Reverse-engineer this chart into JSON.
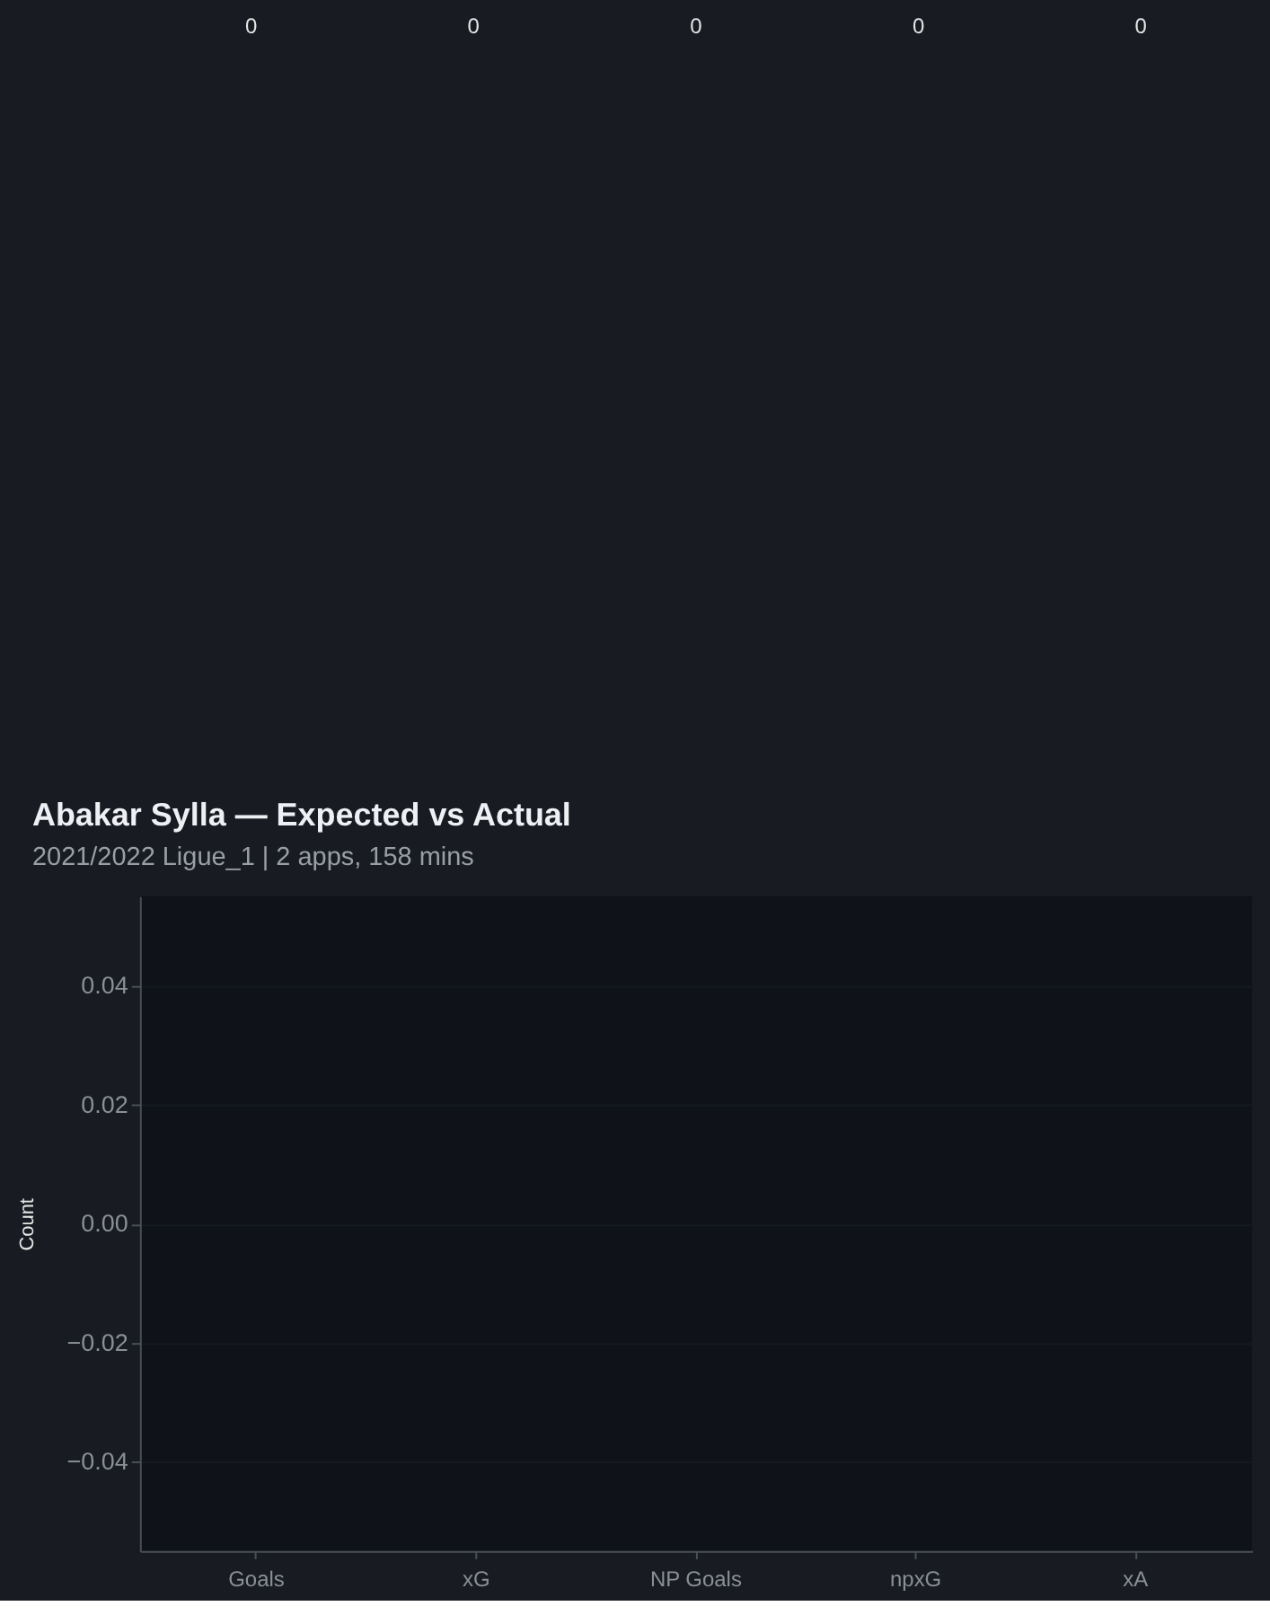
{
  "chart_data": {
    "type": "bar",
    "title": "Abakar Sylla — Expected vs Actual",
    "subtitle": "2021/2022 Ligue_1 | 2 apps, 158 mins",
    "ylabel": "Count",
    "categories": [
      "Goals",
      "xG",
      "NP Goals",
      "npxG",
      "xA"
    ],
    "values": [
      0,
      0,
      0,
      0,
      0
    ],
    "data_labels": true,
    "ylim": [
      -0.055,
      0.055
    ],
    "yticks": [
      {
        "value": -0.04,
        "label": "−0.04"
      },
      {
        "value": -0.02,
        "label": "−0.02"
      },
      {
        "value": 0,
        "label": "0.00"
      },
      {
        "value": 0.02,
        "label": "0.02"
      },
      {
        "value": 0.04,
        "label": "0.04"
      }
    ],
    "grid": "y"
  }
}
